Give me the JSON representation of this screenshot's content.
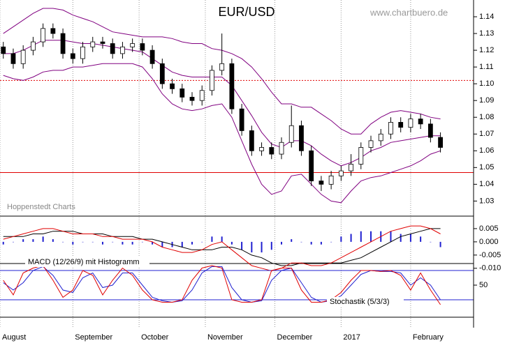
{
  "chart_data": [
    {
      "type": "candlestick",
      "title": "EUR/USD",
      "annotations": [
        "www.chartbuero.de",
        "Hoppenstedt Charts"
      ],
      "x": [
        1,
        4,
        7,
        10,
        13,
        16,
        19,
        22,
        25,
        28,
        31,
        34,
        37,
        40,
        43,
        46,
        49,
        52,
        55,
        58,
        61,
        64,
        67,
        70,
        73,
        76,
        79,
        82,
        85,
        88,
        91,
        94,
        97,
        100,
        103,
        106,
        109,
        112,
        115,
        118,
        121,
        124,
        127,
        130,
        133
      ],
      "xlim": [
        0,
        143
      ],
      "open": [
        1.122,
        1.118,
        1.112,
        1.12,
        1.125,
        1.133,
        1.13,
        1.118,
        1.115,
        1.122,
        1.125,
        1.124,
        1.118,
        1.122,
        1.124,
        1.12,
        1.112,
        1.1,
        1.097,
        1.092,
        1.09,
        1.096,
        1.108,
        1.112,
        1.085,
        1.072,
        1.06,
        1.062,
        1.058,
        1.065,
        1.075,
        1.06,
        1.042,
        1.04,
        1.045,
        1.048,
        1.052,
        1.062,
        1.066,
        1.07,
        1.077,
        1.074,
        1.079,
        1.076,
        1.068
      ],
      "high": [
        1.125,
        1.121,
        1.123,
        1.128,
        1.136,
        1.136,
        1.133,
        1.121,
        1.125,
        1.128,
        1.128,
        1.127,
        1.125,
        1.127,
        1.127,
        1.123,
        1.115,
        1.103,
        1.1,
        1.095,
        1.099,
        1.111,
        1.13,
        1.115,
        1.088,
        1.075,
        1.065,
        1.065,
        1.068,
        1.087,
        1.078,
        1.063,
        1.045,
        1.048,
        1.051,
        1.058,
        1.065,
        1.069,
        1.073,
        1.08,
        1.08,
        1.082,
        1.082,
        1.079,
        1.071
      ],
      "low": [
        1.115,
        1.109,
        1.109,
        1.117,
        1.122,
        1.127,
        1.115,
        1.112,
        1.112,
        1.119,
        1.121,
        1.115,
        1.115,
        1.119,
        1.117,
        1.109,
        1.097,
        1.094,
        1.089,
        1.087,
        1.087,
        1.093,
        1.105,
        1.082,
        1.069,
        1.057,
        1.057,
        1.055,
        1.055,
        1.062,
        1.057,
        1.039,
        1.036,
        1.037,
        1.042,
        1.045,
        1.049,
        1.059,
        1.063,
        1.067,
        1.071,
        1.071,
        1.073,
        1.065,
        1.059
      ],
      "close": [
        1.118,
        1.112,
        1.12,
        1.125,
        1.133,
        1.13,
        1.118,
        1.115,
        1.122,
        1.125,
        1.124,
        1.118,
        1.122,
        1.124,
        1.12,
        1.112,
        1.1,
        1.097,
        1.092,
        1.09,
        1.096,
        1.108,
        1.112,
        1.085,
        1.072,
        1.06,
        1.062,
        1.058,
        1.065,
        1.075,
        1.06,
        1.042,
        1.04,
        1.045,
        1.048,
        1.052,
        1.062,
        1.066,
        1.07,
        1.077,
        1.074,
        1.079,
        1.076,
        1.068,
        1.062
      ],
      "up_color": "#ffffff",
      "down_color": "#000000",
      "bands": {
        "color": "#800080",
        "upper": [
          1.13,
          1.134,
          1.138,
          1.142,
          1.145,
          1.145,
          1.144,
          1.141,
          1.139,
          1.137,
          1.134,
          1.131,
          1.13,
          1.129,
          1.128,
          1.128,
          1.128,
          1.127,
          1.125,
          1.124,
          1.124,
          1.121,
          1.12,
          1.118,
          1.115,
          1.11,
          1.103,
          1.095,
          1.088,
          1.088,
          1.086,
          1.086,
          1.082,
          1.078,
          1.073,
          1.07,
          1.07,
          1.076,
          1.08,
          1.083,
          1.084,
          1.083,
          1.082,
          1.08,
          1.079
        ],
        "middle": [
          1.118,
          1.118,
          1.12,
          1.123,
          1.126,
          1.126,
          1.126,
          1.125,
          1.124,
          1.124,
          1.123,
          1.122,
          1.121,
          1.12,
          1.119,
          1.115,
          1.111,
          1.107,
          1.105,
          1.104,
          1.104,
          1.104,
          1.104,
          1.099,
          1.09,
          1.081,
          1.071,
          1.064,
          1.062,
          1.066,
          1.066,
          1.063,
          1.058,
          1.054,
          1.051,
          1.053,
          1.056,
          1.06,
          1.062,
          1.065,
          1.066,
          1.067,
          1.068,
          1.069,
          1.069
        ],
        "lower": [
          1.105,
          1.103,
          1.102,
          1.104,
          1.107,
          1.108,
          1.108,
          1.11,
          1.11,
          1.111,
          1.112,
          1.112,
          1.112,
          1.112,
          1.11,
          1.103,
          1.094,
          1.088,
          1.085,
          1.084,
          1.085,
          1.087,
          1.088,
          1.08,
          1.066,
          1.052,
          1.04,
          1.034,
          1.036,
          1.045,
          1.046,
          1.04,
          1.034,
          1.03,
          1.029,
          1.036,
          1.042,
          1.044,
          1.045,
          1.047,
          1.049,
          1.051,
          1.054,
          1.058,
          1.06
        ]
      },
      "hlines": [
        {
          "value": 1.102,
          "style": "dotted",
          "color": "#e00000"
        },
        {
          "value": 1.047,
          "style": "solid",
          "color": "#e00000"
        }
      ],
      "ylim": [
        1.021,
        1.15
      ],
      "yticks": [
        {
          "value": 1.03,
          "label": "1.03"
        },
        {
          "value": 1.04,
          "label": "1.04"
        },
        {
          "value": 1.05,
          "label": "1.05"
        },
        {
          "value": 1.06,
          "label": "1.06"
        },
        {
          "value": 1.07,
          "label": "1.07"
        },
        {
          "value": 1.08,
          "label": "1.08"
        },
        {
          "value": 1.09,
          "label": "1.09"
        },
        {
          "value": 1.1,
          "label": "1.10"
        },
        {
          "value": 1.11,
          "label": "1.11"
        },
        {
          "value": 1.12,
          "label": "1.12"
        },
        {
          "value": 1.13,
          "label": "1.13"
        },
        {
          "value": 1.14,
          "label": "1.14"
        }
      ]
    },
    {
      "type": "line",
      "annotations": [
        "MACD (12/26/9) mit Histogramm"
      ],
      "series": [
        {
          "type": "bar",
          "color": "#2020d0",
          "values": [
            -0.001,
            0,
            0.001,
            0.001,
            0.002,
            0.001,
            0,
            -0.001,
            0,
            0,
            -0.001,
            0,
            -0.001,
            -0.001,
            0,
            -0.001,
            -0.002,
            -0.002,
            -0.002,
            -0.001,
            0,
            0.002,
            0.002,
            -0.001,
            -0.003,
            -0.004,
            -0.004,
            -0.003,
            -0.001,
            0.001,
            0,
            -0.001,
            -0.001,
            0,
            0.002,
            0.003,
            0.004,
            0.004,
            0.004,
            0.004,
            0.003,
            0.003,
            0.002,
            0,
            -0.002
          ]
        },
        {
          "color": "#000000",
          "values": [
            0.002,
            0.002,
            0.002,
            0.003,
            0.003,
            0.004,
            0.004,
            0.004,
            0.003,
            0.003,
            0.003,
            0.002,
            0.002,
            0.002,
            0.001,
            0.001,
            0,
            -0.001,
            -0.002,
            -0.003,
            -0.003,
            -0.003,
            -0.002,
            -0.002,
            -0.003,
            -0.005,
            -0.006,
            -0.008,
            -0.009,
            -0.009,
            -0.008,
            -0.008,
            -0.008,
            -0.008,
            -0.008,
            -0.007,
            -0.006,
            -0.004,
            -0.002,
            0,
            0.002,
            0.003,
            0.004,
            0.005,
            0.005
          ]
        },
        {
          "color": "#e00000",
          "values": [
            0.001,
            0.002,
            0.003,
            0.004,
            0.005,
            0.005,
            0.004,
            0.003,
            0.003,
            0.003,
            0.002,
            0.002,
            0.001,
            0.001,
            0.001,
            0,
            -0.002,
            -0.003,
            -0.004,
            -0.004,
            -0.003,
            -0.001,
            0,
            -0.003,
            -0.006,
            -0.009,
            -0.01,
            -0.011,
            -0.01,
            -0.008,
            -0.008,
            -0.009,
            -0.009,
            -0.008,
            -0.006,
            -0.004,
            -0.002,
            0,
            0.002,
            0.004,
            0.005,
            0.006,
            0.006,
            0.005,
            0.003
          ]
        }
      ],
      "ylim": [
        -0.0082,
        0.0092
      ],
      "yticks": [
        {
          "value": 0.005,
          "label": "0.005"
        },
        {
          "value": 0,
          "label": "0.000"
        },
        {
          "value": -0.005,
          "label": "-0.005"
        },
        {
          "value": -0.01,
          "label": "-0.010"
        }
      ]
    },
    {
      "type": "line",
      "annotations": [
        "Stochastik (5/3/3)"
      ],
      "series": [
        {
          "color": "#2020d0",
          "values": [
            55,
            40,
            55,
            80,
            88,
            70,
            40,
            35,
            65,
            75,
            45,
            50,
            75,
            75,
            50,
            25,
            18,
            15,
            18,
            40,
            75,
            88,
            88,
            45,
            20,
            15,
            18,
            60,
            80,
            85,
            55,
            25,
            15,
            18,
            28,
            50,
            72,
            80,
            78,
            78,
            75,
            50,
            65,
            50,
            20
          ]
        },
        {
          "color": "#e00000",
          "values": [
            60,
            30,
            75,
            85,
            90,
            60,
            25,
            40,
            80,
            70,
            30,
            60,
            85,
            70,
            40,
            20,
            15,
            15,
            20,
            60,
            85,
            90,
            85,
            20,
            15,
            15,
            20,
            80,
            85,
            85,
            40,
            15,
            15,
            20,
            35,
            60,
            80,
            80,
            78,
            80,
            70,
            40,
            75,
            40,
            10
          ]
        }
      ],
      "hlines": [
        {
          "value": 80,
          "style": "solid",
          "color": "#2020d0"
        },
        {
          "value": 20,
          "style": "solid",
          "color": "#2020d0"
        }
      ],
      "ylim": [
        -15.7,
        94.3
      ],
      "yticks": [
        50
      ],
      "xticks": [
        {
          "value": 0,
          "label": "August"
        },
        {
          "value": 22,
          "label": "September"
        },
        {
          "value": 42,
          "label": "October"
        },
        {
          "value": 62,
          "label": "November"
        },
        {
          "value": 83,
          "label": "December"
        },
        {
          "value": 103,
          "label": "2017"
        },
        {
          "value": 124,
          "label": "February"
        }
      ]
    }
  ]
}
